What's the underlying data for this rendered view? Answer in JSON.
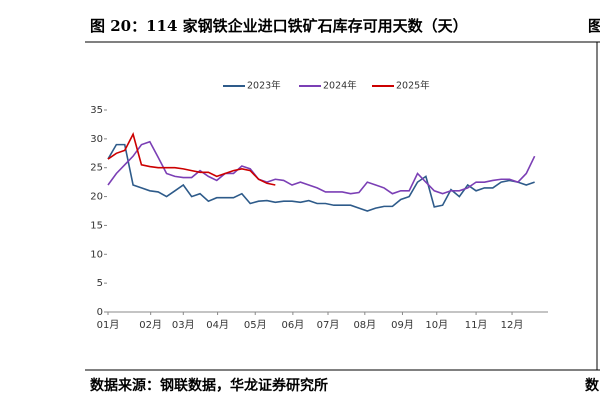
{
  "chart_data": {
    "type": "line",
    "title": "图 20：114 家钢铁企业进口铁矿石库存可用天数（天）",
    "title_cut": "图",
    "source": "数据来源：钢联数据，华龙证券研究所",
    "source_cut": "数",
    "x": [
      0,
      1,
      2,
      3,
      4,
      5,
      6,
      7,
      8,
      9,
      10,
      11,
      12,
      13,
      14,
      15,
      16,
      17,
      18,
      19,
      20,
      21,
      22,
      23,
      24,
      25,
      26,
      27,
      28,
      29,
      30,
      31,
      32,
      33,
      34,
      35,
      36,
      37,
      38,
      39,
      40,
      41,
      42,
      43,
      44,
      45,
      46,
      47,
      48,
      49,
      50,
      51
    ],
    "xlim": [
      0,
      52
    ],
    "xticks": [
      {
        "value": 0,
        "label": "01月"
      },
      {
        "value": 5.1,
        "label": "02月"
      },
      {
        "value": 9,
        "label": "03月"
      },
      {
        "value": 13.1,
        "label": "04月"
      },
      {
        "value": 17.6,
        "label": "05月"
      },
      {
        "value": 22.1,
        "label": "06月"
      },
      {
        "value": 26.3,
        "label": "07月"
      },
      {
        "value": 30.7,
        "label": "08月"
      },
      {
        "value": 35.2,
        "label": "09月"
      },
      {
        "value": 39.3,
        "label": "10月"
      },
      {
        "value": 44,
        "label": "11月"
      },
      {
        "value": 48.3,
        "label": "12月"
      }
    ],
    "ylim": [
      0,
      35
    ],
    "yticks": [
      0,
      5,
      10,
      15,
      20,
      25,
      30,
      35
    ],
    "series": [
      {
        "name": "2023年",
        "color": "#2e5b8a",
        "values": [
          26.5,
          29,
          29,
          22,
          21.5,
          21,
          20.8,
          20,
          21,
          22,
          20,
          20.5,
          19.2,
          19.8,
          19.8,
          19.8,
          20.5,
          18.8,
          19.2,
          19.3,
          19,
          19.2,
          19.2,
          19,
          19.3,
          18.8,
          18.8,
          18.5,
          18.5,
          18.5,
          18,
          17.5,
          18,
          18.3,
          18.3,
          19.5,
          20,
          22.5,
          23.5,
          18.2,
          18.5,
          21.2,
          20,
          22,
          21,
          21.5,
          21.5,
          22.5,
          22.8,
          22.5,
          22,
          22.5
        ]
      },
      {
        "name": "2024年",
        "color": "#7b3fb5",
        "values": [
          22,
          24,
          25.5,
          27,
          29,
          29.5,
          26.8,
          24,
          23.5,
          23.3,
          23.3,
          24.5,
          23.5,
          22.8,
          24,
          24,
          25.3,
          24.8,
          23,
          22.5,
          23,
          22.8,
          22,
          22.5,
          22,
          21.5,
          20.8,
          20.8,
          20.8,
          20.5,
          20.7,
          22.5,
          22,
          21.5,
          20.5,
          21,
          21,
          24,
          22.5,
          21,
          20.5,
          21,
          21,
          21.5,
          22.5,
          22.5,
          22.8,
          23,
          23,
          22.5,
          24,
          27
        ]
      },
      {
        "name": "2025年",
        "color": "#cc0000",
        "values": [
          26.5,
          27.5,
          28,
          30.8,
          25.5,
          25.2,
          25,
          25,
          25,
          24.8,
          24.5,
          24.2,
          24.2,
          23.5,
          24,
          24.5,
          24.8,
          24.5,
          23,
          22.3,
          22,
          null,
          null,
          null,
          null,
          null,
          null,
          null,
          null,
          null,
          null,
          null,
          null,
          null,
          null,
          null,
          null,
          null,
          null,
          null,
          null,
          null,
          null,
          null,
          null,
          null,
          null,
          null,
          null,
          null,
          null,
          null
        ]
      }
    ]
  }
}
